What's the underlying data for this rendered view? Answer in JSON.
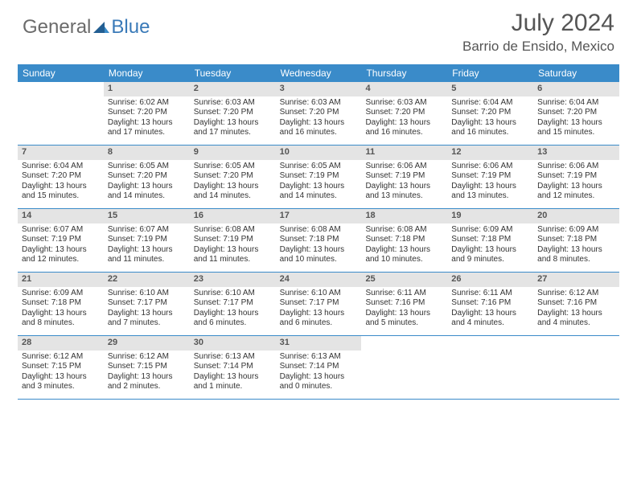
{
  "brand": {
    "part1": "General",
    "part2": "Blue"
  },
  "title": "July 2024",
  "location": "Barrio de Ensido, Mexico",
  "colors": {
    "header_bg": "#3a8bc9",
    "header_text": "#ffffff",
    "daynum_bg": "#e4e4e4",
    "border": "#3a8bc9",
    "brand_gray": "#6b6b6b",
    "brand_blue": "#3a7ab8"
  },
  "day_names": [
    "Sunday",
    "Monday",
    "Tuesday",
    "Wednesday",
    "Thursday",
    "Friday",
    "Saturday"
  ],
  "weeks": [
    [
      {
        "n": "",
        "sr": "",
        "ss": "",
        "dl": ""
      },
      {
        "n": "1",
        "sr": "Sunrise: 6:02 AM",
        "ss": "Sunset: 7:20 PM",
        "dl": "Daylight: 13 hours and 17 minutes."
      },
      {
        "n": "2",
        "sr": "Sunrise: 6:03 AM",
        "ss": "Sunset: 7:20 PM",
        "dl": "Daylight: 13 hours and 17 minutes."
      },
      {
        "n": "3",
        "sr": "Sunrise: 6:03 AM",
        "ss": "Sunset: 7:20 PM",
        "dl": "Daylight: 13 hours and 16 minutes."
      },
      {
        "n": "4",
        "sr": "Sunrise: 6:03 AM",
        "ss": "Sunset: 7:20 PM",
        "dl": "Daylight: 13 hours and 16 minutes."
      },
      {
        "n": "5",
        "sr": "Sunrise: 6:04 AM",
        "ss": "Sunset: 7:20 PM",
        "dl": "Daylight: 13 hours and 16 minutes."
      },
      {
        "n": "6",
        "sr": "Sunrise: 6:04 AM",
        "ss": "Sunset: 7:20 PM",
        "dl": "Daylight: 13 hours and 15 minutes."
      }
    ],
    [
      {
        "n": "7",
        "sr": "Sunrise: 6:04 AM",
        "ss": "Sunset: 7:20 PM",
        "dl": "Daylight: 13 hours and 15 minutes."
      },
      {
        "n": "8",
        "sr": "Sunrise: 6:05 AM",
        "ss": "Sunset: 7:20 PM",
        "dl": "Daylight: 13 hours and 14 minutes."
      },
      {
        "n": "9",
        "sr": "Sunrise: 6:05 AM",
        "ss": "Sunset: 7:20 PM",
        "dl": "Daylight: 13 hours and 14 minutes."
      },
      {
        "n": "10",
        "sr": "Sunrise: 6:05 AM",
        "ss": "Sunset: 7:19 PM",
        "dl": "Daylight: 13 hours and 14 minutes."
      },
      {
        "n": "11",
        "sr": "Sunrise: 6:06 AM",
        "ss": "Sunset: 7:19 PM",
        "dl": "Daylight: 13 hours and 13 minutes."
      },
      {
        "n": "12",
        "sr": "Sunrise: 6:06 AM",
        "ss": "Sunset: 7:19 PM",
        "dl": "Daylight: 13 hours and 13 minutes."
      },
      {
        "n": "13",
        "sr": "Sunrise: 6:06 AM",
        "ss": "Sunset: 7:19 PM",
        "dl": "Daylight: 13 hours and 12 minutes."
      }
    ],
    [
      {
        "n": "14",
        "sr": "Sunrise: 6:07 AM",
        "ss": "Sunset: 7:19 PM",
        "dl": "Daylight: 13 hours and 12 minutes."
      },
      {
        "n": "15",
        "sr": "Sunrise: 6:07 AM",
        "ss": "Sunset: 7:19 PM",
        "dl": "Daylight: 13 hours and 11 minutes."
      },
      {
        "n": "16",
        "sr": "Sunrise: 6:08 AM",
        "ss": "Sunset: 7:19 PM",
        "dl": "Daylight: 13 hours and 11 minutes."
      },
      {
        "n": "17",
        "sr": "Sunrise: 6:08 AM",
        "ss": "Sunset: 7:18 PM",
        "dl": "Daylight: 13 hours and 10 minutes."
      },
      {
        "n": "18",
        "sr": "Sunrise: 6:08 AM",
        "ss": "Sunset: 7:18 PM",
        "dl": "Daylight: 13 hours and 10 minutes."
      },
      {
        "n": "19",
        "sr": "Sunrise: 6:09 AM",
        "ss": "Sunset: 7:18 PM",
        "dl": "Daylight: 13 hours and 9 minutes."
      },
      {
        "n": "20",
        "sr": "Sunrise: 6:09 AM",
        "ss": "Sunset: 7:18 PM",
        "dl": "Daylight: 13 hours and 8 minutes."
      }
    ],
    [
      {
        "n": "21",
        "sr": "Sunrise: 6:09 AM",
        "ss": "Sunset: 7:18 PM",
        "dl": "Daylight: 13 hours and 8 minutes."
      },
      {
        "n": "22",
        "sr": "Sunrise: 6:10 AM",
        "ss": "Sunset: 7:17 PM",
        "dl": "Daylight: 13 hours and 7 minutes."
      },
      {
        "n": "23",
        "sr": "Sunrise: 6:10 AM",
        "ss": "Sunset: 7:17 PM",
        "dl": "Daylight: 13 hours and 6 minutes."
      },
      {
        "n": "24",
        "sr": "Sunrise: 6:10 AM",
        "ss": "Sunset: 7:17 PM",
        "dl": "Daylight: 13 hours and 6 minutes."
      },
      {
        "n": "25",
        "sr": "Sunrise: 6:11 AM",
        "ss": "Sunset: 7:16 PM",
        "dl": "Daylight: 13 hours and 5 minutes."
      },
      {
        "n": "26",
        "sr": "Sunrise: 6:11 AM",
        "ss": "Sunset: 7:16 PM",
        "dl": "Daylight: 13 hours and 4 minutes."
      },
      {
        "n": "27",
        "sr": "Sunrise: 6:12 AM",
        "ss": "Sunset: 7:16 PM",
        "dl": "Daylight: 13 hours and 4 minutes."
      }
    ],
    [
      {
        "n": "28",
        "sr": "Sunrise: 6:12 AM",
        "ss": "Sunset: 7:15 PM",
        "dl": "Daylight: 13 hours and 3 minutes."
      },
      {
        "n": "29",
        "sr": "Sunrise: 6:12 AM",
        "ss": "Sunset: 7:15 PM",
        "dl": "Daylight: 13 hours and 2 minutes."
      },
      {
        "n": "30",
        "sr": "Sunrise: 6:13 AM",
        "ss": "Sunset: 7:14 PM",
        "dl": "Daylight: 13 hours and 1 minute."
      },
      {
        "n": "31",
        "sr": "Sunrise: 6:13 AM",
        "ss": "Sunset: 7:14 PM",
        "dl": "Daylight: 13 hours and 0 minutes."
      },
      {
        "n": "",
        "sr": "",
        "ss": "",
        "dl": ""
      },
      {
        "n": "",
        "sr": "",
        "ss": "",
        "dl": ""
      },
      {
        "n": "",
        "sr": "",
        "ss": "",
        "dl": ""
      }
    ]
  ]
}
